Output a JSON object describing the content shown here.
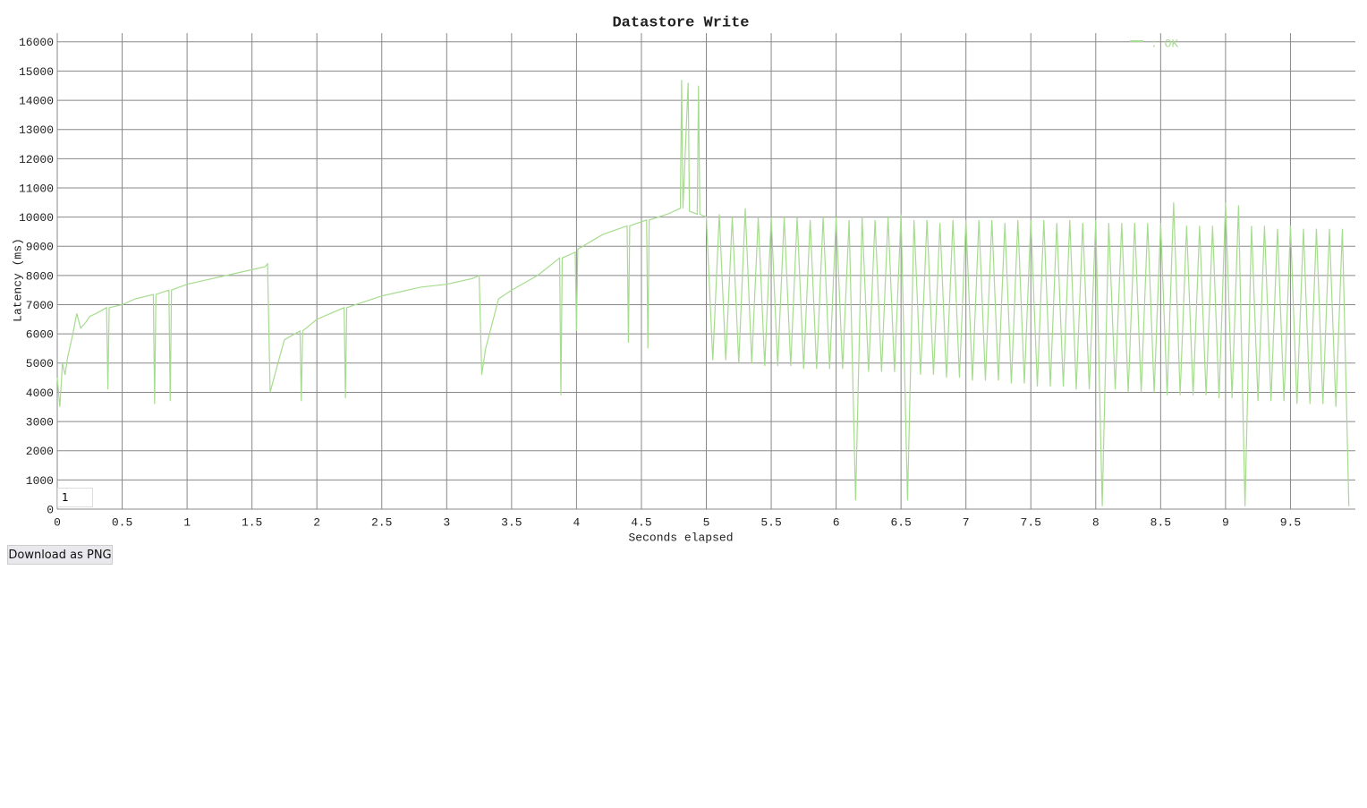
{
  "chart_data": {
    "type": "line",
    "title": "Datastore Write",
    "x_label": "Seconds elapsed",
    "y_label": "Latency (ms)",
    "xlim": [
      0,
      10
    ],
    "ylim": [
      0,
      16300
    ],
    "xticks": [
      0,
      0.5,
      1,
      1.5,
      2,
      2.5,
      3,
      3.5,
      4,
      4.5,
      5,
      5.5,
      6,
      6.5,
      7,
      7.5,
      8,
      8.5,
      9,
      9.5
    ],
    "yticks": [
      0,
      1000,
      2000,
      3000,
      4000,
      5000,
      6000,
      7000,
      8000,
      9000,
      10000,
      11000,
      12000,
      13000,
      14000,
      15000,
      16000
    ],
    "grid": true,
    "legend": "top-right",
    "x": [
      0,
      0.02,
      0.04,
      0.06,
      0.08,
      0.1,
      0.12,
      0.15,
      0.18,
      0.22,
      0.25,
      0.3,
      0.38,
      0.39,
      0.4,
      0.5,
      0.6,
      0.74,
      0.75,
      0.76,
      0.86,
      0.87,
      0.88,
      1.0,
      1.2,
      1.4,
      1.5,
      1.6,
      1.62,
      1.64,
      1.7,
      1.75,
      1.87,
      1.88,
      1.89,
      2.0,
      2.21,
      2.22,
      2.23,
      2.5,
      2.8,
      3.0,
      3.2,
      3.25,
      3.27,
      3.3,
      3.4,
      3.5,
      3.7,
      3.87,
      3.88,
      3.89,
      3.99,
      4.0,
      4.01,
      4.2,
      4.39,
      4.4,
      4.41,
      4.54,
      4.55,
      4.56,
      4.7,
      4.8,
      4.81,
      4.82,
      4.86,
      4.87,
      4.93,
      4.94,
      4.95,
      5.0,
      5.05,
      5.1,
      5.15,
      5.2,
      5.25,
      5.3,
      5.35,
      5.4,
      5.45,
      5.5,
      5.55,
      5.6,
      5.65,
      5.7,
      5.75,
      5.8,
      5.85,
      5.9,
      5.95,
      6.0,
      6.05,
      6.1,
      6.15,
      6.2,
      6.25,
      6.3,
      6.35,
      6.4,
      6.45,
      6.5,
      6.55,
      6.6,
      6.65,
      6.7,
      6.75,
      6.8,
      6.85,
      6.9,
      6.95,
      7.0,
      7.05,
      7.1,
      7.15,
      7.2,
      7.25,
      7.3,
      7.35,
      7.4,
      7.45,
      7.5,
      7.55,
      7.6,
      7.65,
      7.7,
      7.75,
      7.8,
      7.85,
      7.9,
      7.95,
      8.0,
      8.05,
      8.1,
      8.15,
      8.2,
      8.25,
      8.3,
      8.35,
      8.4,
      8.45,
      8.5,
      8.55,
      8.6,
      8.65,
      8.7,
      8.75,
      8.8,
      8.85,
      8.9,
      8.95,
      9.0,
      9.05,
      9.1,
      9.15,
      9.2,
      9.25,
      9.3,
      9.35,
      9.4,
      9.45,
      9.5,
      9.55,
      9.6,
      9.65,
      9.7,
      9.75,
      9.8,
      9.85,
      9.9,
      9.95
    ],
    "series": [
      {
        "name": ": OK",
        "color": "#a6dc8e",
        "values": [
          4500,
          3500,
          5000,
          4600,
          5200,
          5600,
          6000,
          6700,
          6200,
          6400,
          6600,
          6700,
          6900,
          4100,
          6900,
          7000,
          7200,
          7350,
          3600,
          7350,
          7500,
          3700,
          7500,
          7700,
          7900,
          8100,
          8200,
          8300,
          8400,
          4000,
          5000,
          5800,
          6100,
          3700,
          6100,
          6500,
          6900,
          3800,
          6900,
          7300,
          7600,
          7700,
          7900,
          8000,
          4600,
          5500,
          7200,
          7500,
          8000,
          8600,
          3900,
          8600,
          8800,
          6100,
          8900,
          9400,
          9700,
          5700,
          9700,
          9900,
          5500,
          9900,
          10100,
          10300,
          14700,
          10300,
          14600,
          10200,
          10100,
          14500,
          10100,
          10000,
          5100,
          10100,
          5100,
          10000,
          5000,
          10300,
          5000,
          10000,
          4900,
          10000,
          4900,
          10000,
          4900,
          10000,
          4800,
          9900,
          4800,
          10000,
          4800,
          10000,
          4800,
          9900,
          300,
          10000,
          4700,
          9900,
          4700,
          10000,
          4700,
          10100,
          300,
          9900,
          4600,
          9900,
          4600,
          9800,
          4500,
          9900,
          4500,
          9900,
          4400,
          9900,
          4400,
          9900,
          4400,
          9800,
          4300,
          9900,
          4300,
          9900,
          4200,
          9900,
          4200,
          9800,
          4200,
          9900,
          4100,
          9800,
          4100,
          9900,
          100,
          9800,
          4100,
          9800,
          4000,
          9800,
          4000,
          9800,
          4000,
          9800,
          3900,
          10500,
          3900,
          9700,
          3900,
          9700,
          3900,
          9700,
          3800,
          10500,
          3800,
          10400,
          100,
          9700,
          3700,
          9700,
          3700,
          9600,
          3700,
          9700,
          3600,
          9600,
          3600,
          9600,
          3600,
          9600,
          3500,
          9600,
          100
        ]
      }
    ]
  },
  "controls": {
    "input": "1",
    "button": "Download as PNG"
  }
}
